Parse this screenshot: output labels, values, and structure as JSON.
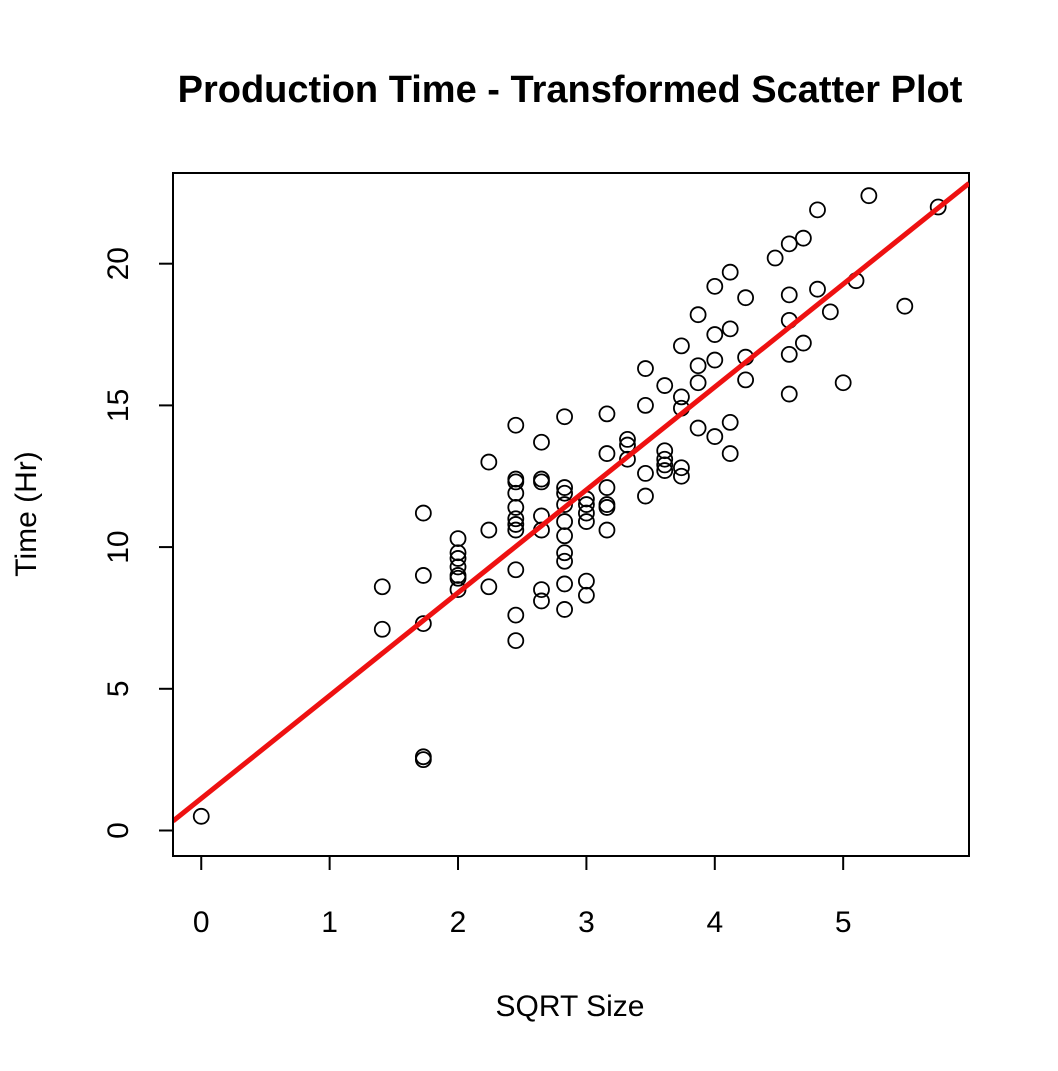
{
  "chart_data": {
    "type": "scatter",
    "title": "Production Time - Transformed Scatter Plot",
    "xlabel": "SQRT Size",
    "ylabel": "Time (Hr)",
    "xlim": [
      -0.22,
      5.98
    ],
    "ylim": [
      -0.9,
      23.2
    ],
    "x_ticks": [
      0,
      1,
      2,
      3,
      4,
      5
    ],
    "y_ticks": [
      0,
      5,
      10,
      15,
      20
    ],
    "x_tick_labels": [
      "0",
      "1",
      "2",
      "3",
      "4",
      "5"
    ],
    "y_tick_labels": [
      "0",
      "5",
      "10",
      "15",
      "20"
    ],
    "grid": false,
    "legend": "none",
    "colors": {
      "points": "#000000",
      "fit_line": "#ee1111"
    },
    "series": [
      {
        "marker": "open-circle",
        "points": [
          [
            0,
            0.5
          ],
          [
            1.41,
            8.6
          ],
          [
            1.41,
            7.1
          ],
          [
            1.73,
            11.2
          ],
          [
            1.73,
            9.0
          ],
          [
            1.73,
            7.3
          ],
          [
            1.73,
            2.6
          ],
          [
            1.73,
            2.5
          ],
          [
            2.0,
            10.3
          ],
          [
            2.0,
            9.8
          ],
          [
            2.0,
            9.6
          ],
          [
            2.0,
            9.3
          ],
          [
            2.0,
            9.0
          ],
          [
            2.0,
            8.9
          ],
          [
            2.0,
            8.5
          ],
          [
            2.24,
            13.0
          ],
          [
            2.24,
            10.6
          ],
          [
            2.24,
            8.6
          ],
          [
            2.45,
            14.3
          ],
          [
            2.45,
            12.4
          ],
          [
            2.45,
            12.3
          ],
          [
            2.45,
            11.9
          ],
          [
            2.45,
            11.4
          ],
          [
            2.45,
            11.0
          ],
          [
            2.45,
            10.8
          ],
          [
            2.45,
            10.6
          ],
          [
            2.45,
            9.2
          ],
          [
            2.45,
            7.6
          ],
          [
            2.45,
            6.7
          ],
          [
            2.65,
            13.7
          ],
          [
            2.65,
            12.4
          ],
          [
            2.65,
            12.3
          ],
          [
            2.65,
            11.1
          ],
          [
            2.65,
            10.6
          ],
          [
            2.65,
            8.5
          ],
          [
            2.65,
            8.1
          ],
          [
            2.83,
            14.6
          ],
          [
            2.83,
            12.1
          ],
          [
            2.83,
            11.9
          ],
          [
            2.83,
            11.5
          ],
          [
            2.83,
            10.9
          ],
          [
            2.83,
            10.4
          ],
          [
            2.83,
            9.8
          ],
          [
            2.83,
            9.5
          ],
          [
            2.83,
            8.7
          ],
          [
            2.83,
            7.8
          ],
          [
            3.0,
            11.7
          ],
          [
            3.0,
            11.5
          ],
          [
            3.0,
            11.2
          ],
          [
            3.0,
            10.9
          ],
          [
            3.0,
            8.8
          ],
          [
            3.0,
            8.3
          ],
          [
            3.16,
            14.7
          ],
          [
            3.16,
            13.3
          ],
          [
            3.16,
            12.1
          ],
          [
            3.16,
            11.5
          ],
          [
            3.16,
            11.4
          ],
          [
            3.16,
            10.6
          ],
          [
            3.32,
            13.8
          ],
          [
            3.32,
            13.6
          ],
          [
            3.32,
            13.1
          ],
          [
            3.46,
            16.3
          ],
          [
            3.46,
            15.0
          ],
          [
            3.46,
            12.6
          ],
          [
            3.46,
            11.8
          ],
          [
            3.61,
            15.7
          ],
          [
            3.61,
            13.4
          ],
          [
            3.61,
            13.1
          ],
          [
            3.61,
            12.9
          ],
          [
            3.61,
            12.7
          ],
          [
            3.74,
            17.1
          ],
          [
            3.74,
            15.3
          ],
          [
            3.74,
            14.9
          ],
          [
            3.74,
            12.8
          ],
          [
            3.74,
            12.5
          ],
          [
            3.87,
            18.2
          ],
          [
            3.87,
            16.4
          ],
          [
            3.87,
            15.8
          ],
          [
            3.87,
            14.2
          ],
          [
            4.0,
            19.2
          ],
          [
            4.0,
            17.5
          ],
          [
            4.0,
            16.6
          ],
          [
            4.0,
            13.9
          ],
          [
            4.12,
            19.7
          ],
          [
            4.12,
            17.7
          ],
          [
            4.12,
            14.4
          ],
          [
            4.12,
            13.3
          ],
          [
            4.24,
            18.8
          ],
          [
            4.24,
            16.7
          ],
          [
            4.24,
            15.9
          ],
          [
            4.47,
            20.2
          ],
          [
            4.58,
            20.7
          ],
          [
            4.58,
            18.9
          ],
          [
            4.58,
            18.0
          ],
          [
            4.58,
            16.8
          ],
          [
            4.58,
            15.4
          ],
          [
            4.69,
            20.9
          ],
          [
            4.69,
            17.2
          ],
          [
            4.8,
            21.9
          ],
          [
            4.8,
            19.1
          ],
          [
            4.9,
            18.3
          ],
          [
            5.0,
            15.8
          ],
          [
            5.1,
            19.4
          ],
          [
            5.2,
            22.4
          ],
          [
            5.48,
            18.5
          ],
          [
            5.74,
            22.0
          ]
        ]
      }
    ],
    "fit_line": {
      "intercept": 1.13,
      "slope": 3.63
    }
  }
}
